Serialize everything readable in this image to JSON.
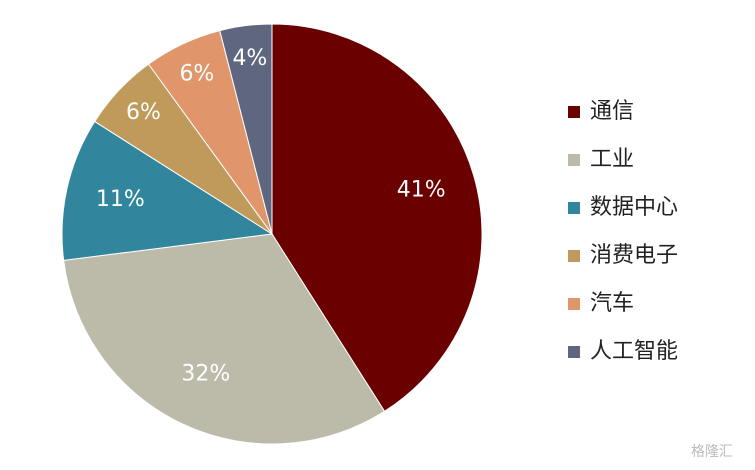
{
  "chart_data": {
    "type": "pie",
    "categories": [
      "通信",
      "工业",
      "数据中心",
      "消费电子",
      "汽车",
      "人工智能"
    ],
    "values": [
      41,
      32,
      11,
      6,
      6,
      4
    ],
    "value_labels": [
      "41%",
      "32%",
      "11%",
      "6%",
      "6%",
      "4%"
    ],
    "colors": [
      "#6b0000",
      "#bcbaa8",
      "#31859c",
      "#c09a5b",
      "#e0956a",
      "#5f6780"
    ],
    "legend": "right",
    "watermark": "格隆汇"
  }
}
